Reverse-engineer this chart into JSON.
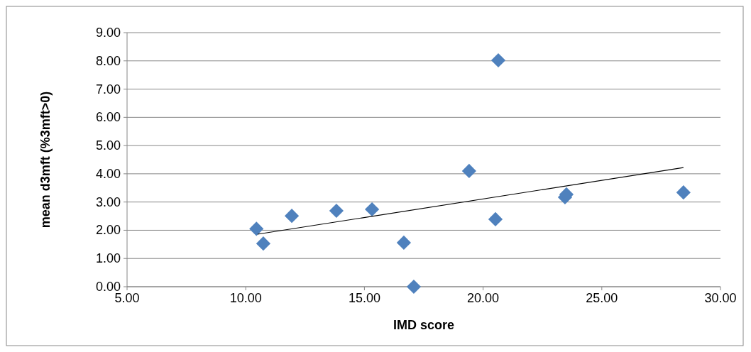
{
  "chart_data": {
    "type": "scatter",
    "xlabel": "IMD score",
    "ylabel": "mean d3mft (%3mft>0)",
    "xlim": [
      5,
      30
    ],
    "xticks": [
      {
        "value": 5,
        "label": "5.00"
      },
      {
        "value": 10,
        "label": "10.00"
      },
      {
        "value": 15,
        "label": "15.00"
      },
      {
        "value": 20,
        "label": "20.00"
      },
      {
        "value": 25,
        "label": "25.00"
      },
      {
        "value": 30,
        "label": "30.00"
      }
    ],
    "ylim": [
      0,
      9
    ],
    "yticks": [
      {
        "value": 0,
        "label": "0.00"
      },
      {
        "value": 1,
        "label": "1.00"
      },
      {
        "value": 2,
        "label": "2.00"
      },
      {
        "value": 3,
        "label": "3.00"
      },
      {
        "value": 4,
        "label": "4.00"
      },
      {
        "value": 5,
        "label": "5.00"
      },
      {
        "value": 6,
        "label": "6.00"
      },
      {
        "value": 7,
        "label": "7.00"
      },
      {
        "value": 8,
        "label": "8.00"
      },
      {
        "value": 9,
        "label": "9.00"
      }
    ],
    "grid": "y",
    "series": [
      {
        "color": "#4f81bd",
        "marker": "diamond",
        "x": [
          10.45,
          10.74,
          11.94,
          13.82,
          15.32,
          16.66,
          17.08,
          19.41,
          20.52,
          20.64,
          23.45,
          23.51,
          28.44
        ],
        "values": [
          2.05,
          1.53,
          2.51,
          2.69,
          2.74,
          1.56,
          0,
          4.1,
          2.39,
          8.02,
          3.17,
          3.27,
          3.34
        ]
      },
      {
        "type": "line",
        "color": "#000000",
        "x": [
          10.5,
          28.44
        ],
        "values": [
          1.86,
          4.22
        ]
      }
    ]
  }
}
